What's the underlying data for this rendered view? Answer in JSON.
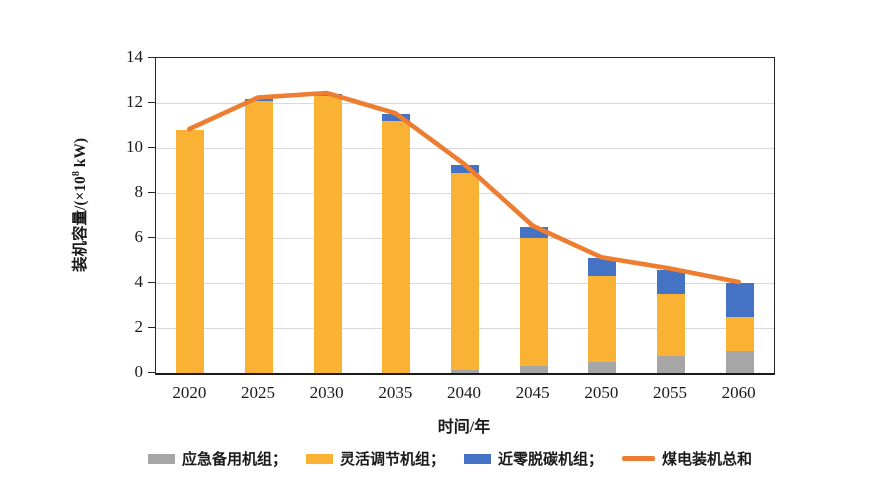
{
  "chart": {
    "ylabel_pre": "装机容量/(×10",
    "ylabel_sup": "8",
    "ylabel_post": " kW)",
    "xlabel": "时间/年"
  },
  "colors": {
    "emergency_backup_gray": "#A6A6A6",
    "flexible_yellow": "#F9B234",
    "near_zero_blue": "#4472C4",
    "coal_total_orange": "#ED7D31",
    "gridline": "#D9D9D9",
    "axis": "#262626"
  },
  "legend": {
    "items": [
      {
        "label": "应急备用机组；",
        "color": "#A6A6A6",
        "type": "rect"
      },
      {
        "label": "灵活调节机组；",
        "color": "#F9B234",
        "type": "rect"
      },
      {
        "label": "近零脱碳机组；",
        "color": "#4472C4",
        "type": "rect"
      },
      {
        "label": "煤电装机总和",
        "color": "#ED7D31",
        "type": "line"
      }
    ]
  },
  "chart_data": {
    "type": "bar",
    "subtype": "stacked-bars-with-line-overlay",
    "title": "",
    "xlabel": "时间/年",
    "ylabel": "装机容量/(×10⁸ kW)",
    "categories": [
      "2020",
      "2025",
      "2030",
      "2035",
      "2040",
      "2045",
      "2050",
      "2055",
      "2060"
    ],
    "series": [
      {
        "name": "应急备用机组",
        "color": "#A6A6A6",
        "values": [
          0,
          0,
          0,
          0,
          0.15,
          0.3,
          0.5,
          0.75,
          1.0
        ]
      },
      {
        "name": "灵活调节机组",
        "color": "#F9B234",
        "values": [
          10.8,
          12.1,
          12.3,
          11.2,
          8.75,
          5.7,
          3.8,
          2.75,
          1.5
        ]
      },
      {
        "name": "近零脱碳机组",
        "color": "#4472C4",
        "values": [
          0,
          0.1,
          0.1,
          0.3,
          0.35,
          0.5,
          0.8,
          1.1,
          1.5
        ]
      }
    ],
    "line_series": {
      "name": "煤电装机总和",
      "color": "#ED7D31",
      "values": [
        10.8,
        12.2,
        12.4,
        11.5,
        9.25,
        6.5,
        5.1,
        4.6,
        4.0
      ]
    },
    "ylim": [
      0,
      14
    ],
    "yticks": [
      0,
      2,
      4,
      6,
      8,
      10,
      12,
      14
    ],
    "grid": "horizontal",
    "legend_position": "bottom"
  }
}
